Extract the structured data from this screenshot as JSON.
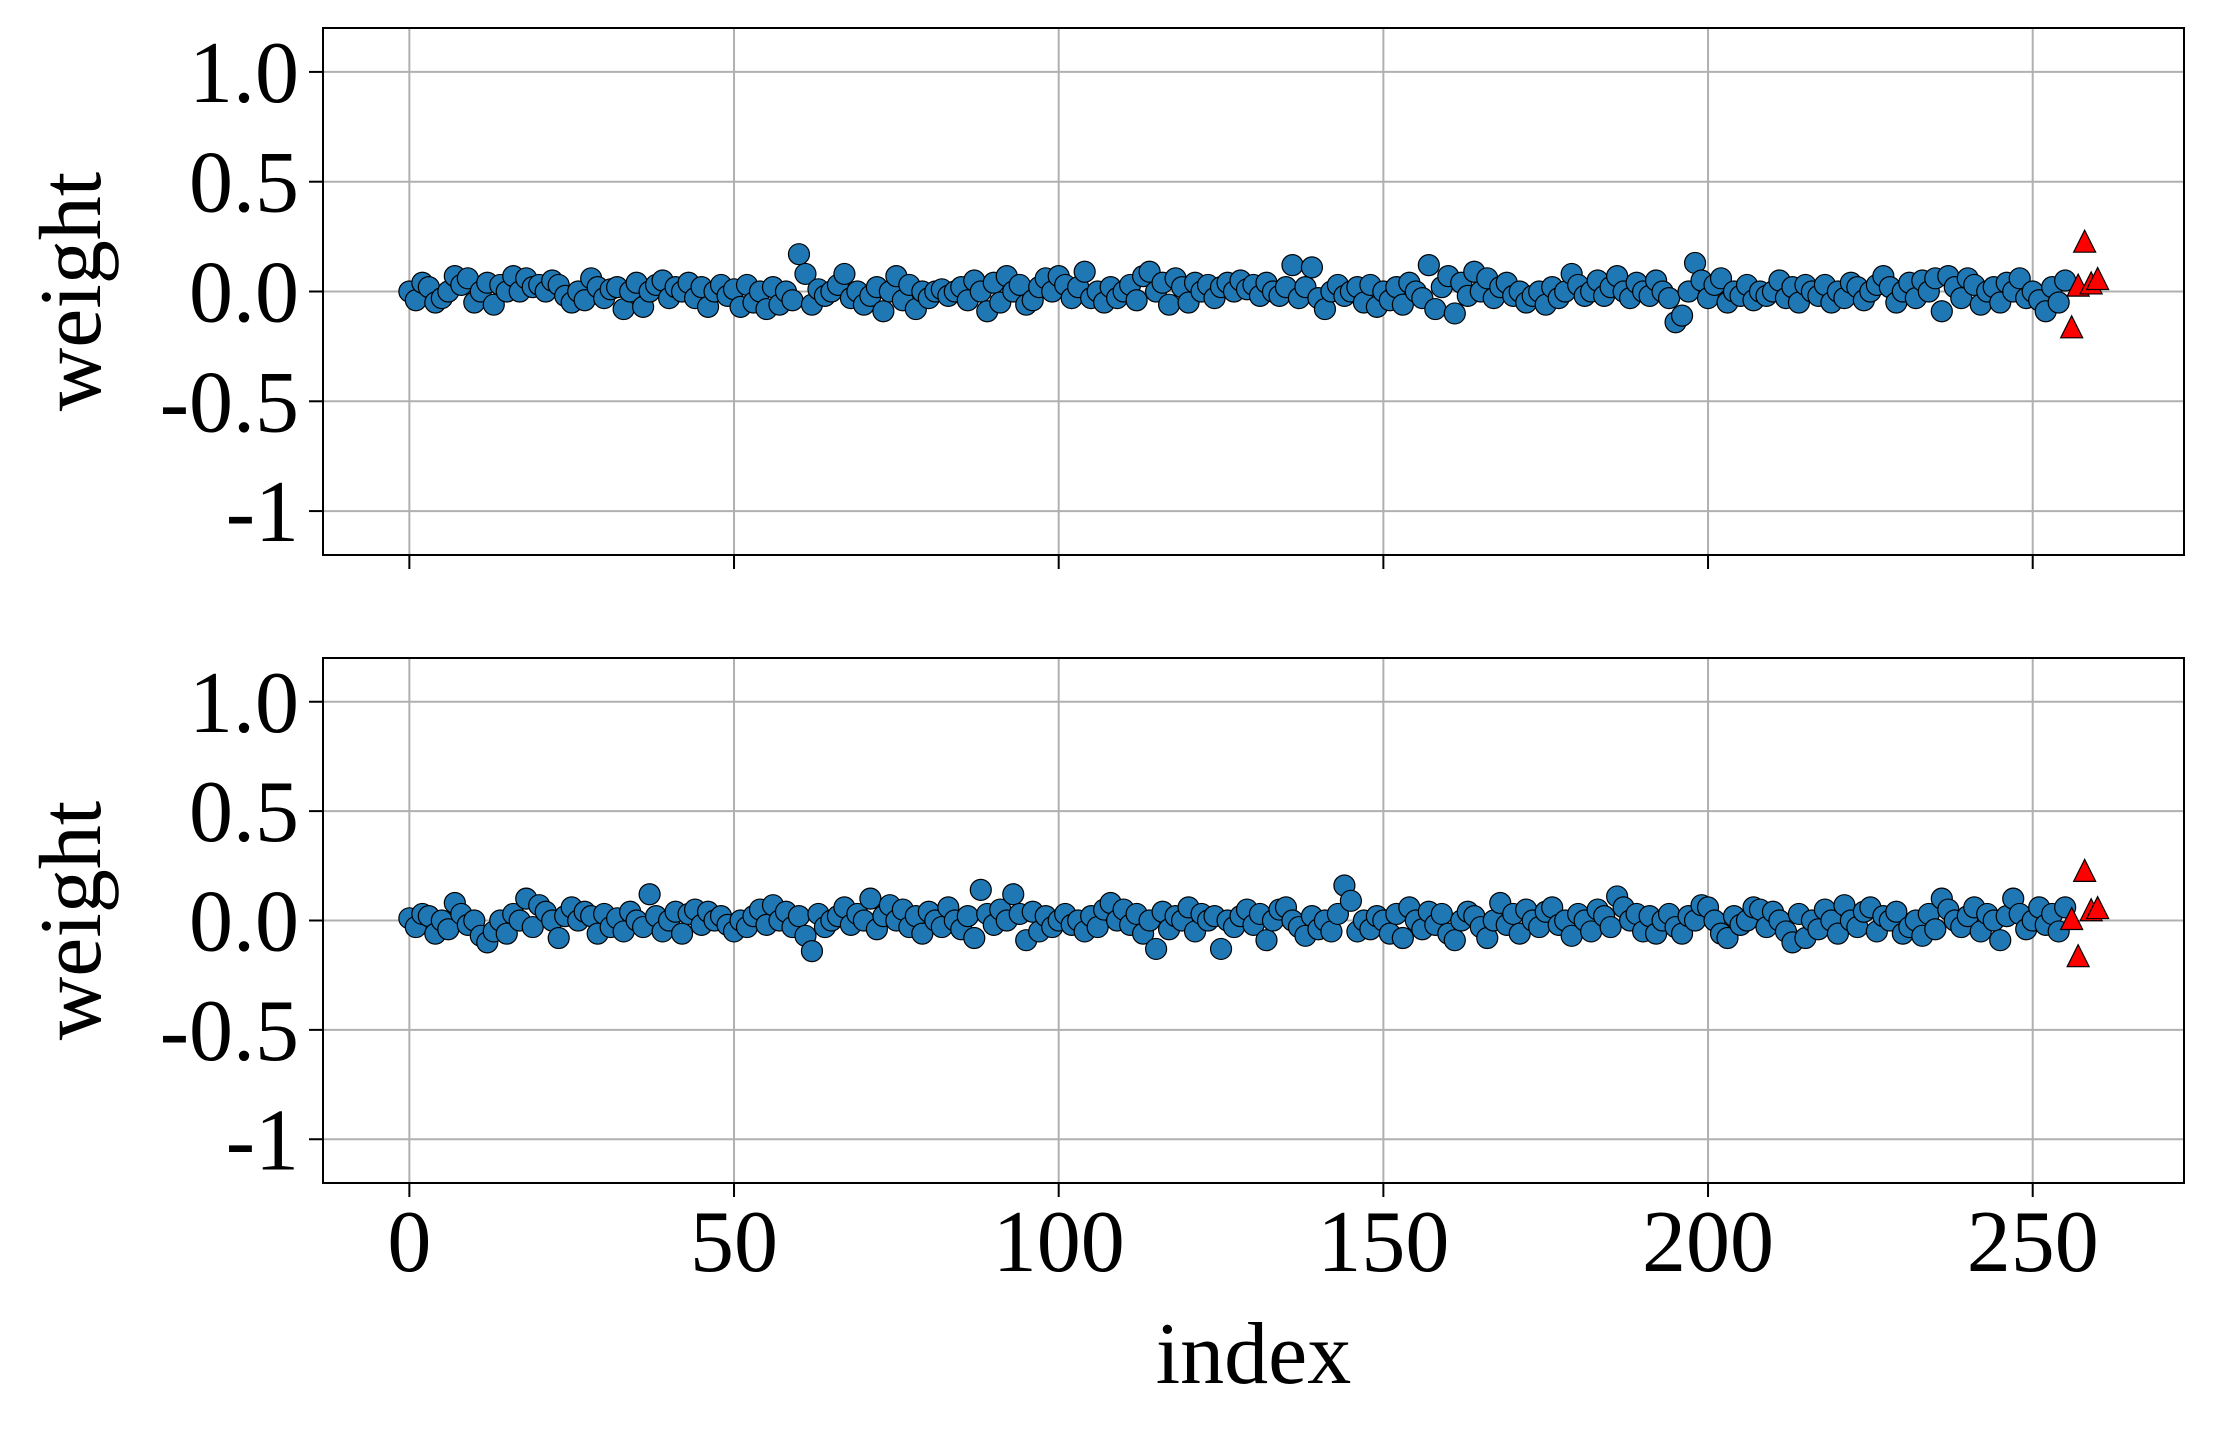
{
  "chart_data": [
    {
      "type": "scatter",
      "ylabel": "weight",
      "xlim": [
        -13.3,
        273.3
      ],
      "ylim": [
        -1.2,
        1.2
      ],
      "xticks": [
        0,
        50,
        100,
        150,
        200,
        250
      ],
      "xticklabels": false,
      "yticks": [
        {
          "value": 1,
          "label": "1.0"
        },
        0.5,
        {
          "value": 0,
          "label": "0.0"
        },
        -0.5,
        -1
      ],
      "grid": true,
      "x": [
        0,
        1,
        2,
        3,
        4,
        5,
        6,
        7,
        8,
        9,
        10,
        11,
        12,
        13,
        14,
        15,
        16,
        17,
        18,
        19,
        20,
        21,
        22,
        23,
        24,
        25,
        26,
        27,
        28,
        29,
        30,
        31,
        32,
        33,
        34,
        35,
        36,
        37,
        38,
        39,
        40,
        41,
        42,
        43,
        44,
        45,
        46,
        47,
        48,
        49,
        50,
        51,
        52,
        53,
        54,
        55,
        56,
        57,
        58,
        59,
        60,
        61,
        62,
        63,
        64,
        65,
        66,
        67,
        68,
        69,
        70,
        71,
        72,
        73,
        74,
        75,
        76,
        77,
        78,
        79,
        80,
        81,
        82,
        83,
        84,
        85,
        86,
        87,
        88,
        89,
        90,
        91,
        92,
        93,
        94,
        95,
        96,
        97,
        98,
        99,
        100,
        101,
        102,
        103,
        104,
        105,
        106,
        107,
        108,
        109,
        110,
        111,
        112,
        113,
        114,
        115,
        116,
        117,
        118,
        119,
        120,
        121,
        122,
        123,
        124,
        125,
        126,
        127,
        128,
        129,
        130,
        131,
        132,
        133,
        134,
        135,
        136,
        137,
        138,
        139,
        140,
        141,
        142,
        143,
        144,
        145,
        146,
        147,
        148,
        149,
        150,
        151,
        152,
        153,
        154,
        155,
        156,
        157,
        158,
        159,
        160,
        161,
        162,
        163,
        164,
        165,
        166,
        167,
        168,
        169,
        170,
        171,
        172,
        173,
        174,
        175,
        176,
        177,
        178,
        179,
        180,
        181,
        182,
        183,
        184,
        185,
        186,
        187,
        188,
        189,
        190,
        191,
        192,
        193,
        194,
        195,
        196,
        197,
        198,
        199,
        200,
        201,
        202,
        203,
        204,
        205,
        206,
        207,
        208,
        209,
        210,
        211,
        212,
        213,
        214,
        215,
        216,
        217,
        218,
        219,
        220,
        221,
        222,
        223,
        224,
        225,
        226,
        227,
        228,
        229,
        230,
        231,
        232,
        233,
        234,
        235,
        236,
        237,
        238,
        239,
        240,
        241,
        242,
        243,
        244,
        245,
        246,
        247,
        248,
        249,
        250,
        251,
        252,
        253,
        254,
        255
      ],
      "series": [
        {
          "color": "#1f77b4",
          "marker": "o",
          "values": [
            0.0,
            -0.04,
            0.04,
            0.02,
            -0.05,
            -0.03,
            0.0,
            0.07,
            0.03,
            0.06,
            -0.05,
            0.0,
            0.04,
            -0.06,
            0.03,
            0.0,
            0.07,
            0.0,
            0.06,
            0.02,
            0.03,
            0.0,
            0.05,
            0.03,
            -0.02,
            -0.05,
            0.0,
            -0.04,
            0.06,
            0.02,
            -0.03,
            0.01,
            0.02,
            -0.08,
            0.0,
            0.04,
            -0.07,
            0.0,
            0.03,
            0.05,
            -0.03,
            0.02,
            0.0,
            0.04,
            -0.03,
            0.02,
            -0.07,
            0.0,
            0.03,
            -0.02,
            0.01,
            -0.07,
            0.03,
            -0.05,
            0.0,
            -0.08,
            0.02,
            -0.06,
            0.0,
            -0.04,
            0.17,
            0.08,
            -0.06,
            0.01,
            -0.02,
            0.0,
            0.03,
            0.08,
            -0.03,
            0.0,
            -0.06,
            -0.02,
            0.02,
            -0.09,
            0.0,
            0.07,
            -0.04,
            0.03,
            -0.08,
            0.0,
            -0.03,
            0.0,
            0.01,
            -0.02,
            0.0,
            0.02,
            -0.04,
            0.05,
            0.0,
            -0.09,
            0.04,
            -0.05,
            0.07,
            0.0,
            0.03,
            -0.06,
            -0.04,
            0.02,
            0.06,
            0.0,
            0.07,
            0.03,
            -0.03,
            0.02,
            0.09,
            -0.03,
            0.0,
            -0.05,
            0.02,
            -0.03,
            0.0,
            0.03,
            -0.04,
            0.07,
            0.09,
            0.0,
            0.04,
            -0.06,
            0.06,
            0.02,
            -0.05,
            0.04,
            0.0,
            0.03,
            -0.03,
            0.02,
            0.04,
            0.0,
            0.05,
            0.01,
            0.03,
            -0.02,
            0.04,
            0.0,
            -0.02,
            0.02,
            0.12,
            -0.03,
            0.02,
            0.11,
            -0.03,
            -0.08,
            0.0,
            0.03,
            -0.02,
            0.0,
            0.02,
            -0.05,
            0.03,
            -0.07,
            0.0,
            -0.04,
            0.02,
            -0.06,
            0.04,
            0.0,
            -0.03,
            0.12,
            -0.08,
            0.02,
            0.07,
            -0.1,
            0.04,
            -0.02,
            0.09,
            0.0,
            0.06,
            -0.03,
            0.02,
            0.04,
            -0.02,
            0.0,
            -0.05,
            -0.02,
            0.0,
            -0.06,
            0.02,
            -0.03,
            0.0,
            0.08,
            0.03,
            -0.02,
            0.0,
            0.05,
            -0.02,
            0.02,
            0.07,
            0.0,
            -0.03,
            0.04,
            0.0,
            -0.02,
            0.05,
            0.0,
            -0.03,
            -0.14,
            -0.11,
            0.0,
            0.13,
            0.05,
            -0.03,
            0.03,
            0.06,
            -0.05,
            0.0,
            -0.02,
            0.03,
            -0.04,
            0.0,
            -0.02,
            0.0,
            0.05,
            -0.03,
            0.02,
            -0.05,
            0.03,
            0.0,
            -0.02,
            0.03,
            -0.05,
            0.0,
            -0.03,
            0.04,
            0.02,
            -0.04,
            0.0,
            0.03,
            0.07,
            0.02,
            -0.05,
            0.0,
            0.04,
            -0.03,
            0.05,
            0.0,
            0.06,
            -0.09,
            0.07,
            0.02,
            -0.03,
            0.06,
            0.03,
            -0.06,
            0.0,
            0.02,
            -0.05,
            0.04,
            0.0,
            0.06,
            -0.03,
            0.0,
            -0.04,
            -0.09,
            0.02,
            -0.05,
            0.05
          ]
        },
        {
          "color": "#ff0000",
          "marker": "^",
          "x": [
            256,
            257,
            258,
            259,
            260
          ],
          "values": [
            -0.17,
            0.02,
            0.22,
            0.03,
            0.05
          ]
        }
      ]
    },
    {
      "type": "scatter",
      "ylabel": "weight",
      "xlabel": "index",
      "xlim": [
        -13.3,
        273.3
      ],
      "ylim": [
        -1.2,
        1.2
      ],
      "xticks": [
        0,
        50,
        100,
        150,
        200,
        250
      ],
      "xticklabels": true,
      "yticks": [
        {
          "value": 1,
          "label": "1.0"
        },
        0.5,
        {
          "value": 0,
          "label": "0.0"
        },
        -0.5,
        -1
      ],
      "grid": true,
      "x": [
        0,
        1,
        2,
        3,
        4,
        5,
        6,
        7,
        8,
        9,
        10,
        11,
        12,
        13,
        14,
        15,
        16,
        17,
        18,
        19,
        20,
        21,
        22,
        23,
        24,
        25,
        26,
        27,
        28,
        29,
        30,
        31,
        32,
        33,
        34,
        35,
        36,
        37,
        38,
        39,
        40,
        41,
        42,
        43,
        44,
        45,
        46,
        47,
        48,
        49,
        50,
        51,
        52,
        53,
        54,
        55,
        56,
        57,
        58,
        59,
        60,
        61,
        62,
        63,
        64,
        65,
        66,
        67,
        68,
        69,
        70,
        71,
        72,
        73,
        74,
        75,
        76,
        77,
        78,
        79,
        80,
        81,
        82,
        83,
        84,
        85,
        86,
        87,
        88,
        89,
        90,
        91,
        92,
        93,
        94,
        95,
        96,
        97,
        98,
        99,
        100,
        101,
        102,
        103,
        104,
        105,
        106,
        107,
        108,
        109,
        110,
        111,
        112,
        113,
        114,
        115,
        116,
        117,
        118,
        119,
        120,
        121,
        122,
        123,
        124,
        125,
        126,
        127,
        128,
        129,
        130,
        131,
        132,
        133,
        134,
        135,
        136,
        137,
        138,
        139,
        140,
        141,
        142,
        143,
        144,
        145,
        146,
        147,
        148,
        149,
        150,
        151,
        152,
        153,
        154,
        155,
        156,
        157,
        158,
        159,
        160,
        161,
        162,
        163,
        164,
        165,
        166,
        167,
        168,
        169,
        170,
        171,
        172,
        173,
        174,
        175,
        176,
        177,
        178,
        179,
        180,
        181,
        182,
        183,
        184,
        185,
        186,
        187,
        188,
        189,
        190,
        191,
        192,
        193,
        194,
        195,
        196,
        197,
        198,
        199,
        200,
        201,
        202,
        203,
        204,
        205,
        206,
        207,
        208,
        209,
        210,
        211,
        212,
        213,
        214,
        215,
        216,
        217,
        218,
        219,
        220,
        221,
        222,
        223,
        224,
        225,
        226,
        227,
        228,
        229,
        230,
        231,
        232,
        233,
        234,
        235,
        236,
        237,
        238,
        239,
        240,
        241,
        242,
        243,
        244,
        245,
        246,
        247,
        248,
        249,
        250,
        251,
        252,
        253,
        254,
        255
      ],
      "series": [
        {
          "color": "#1f77b4",
          "marker": "o",
          "values": [
            0.01,
            -0.03,
            0.03,
            0.02,
            -0.06,
            0.0,
            -0.04,
            0.08,
            0.03,
            -0.02,
            0.0,
            -0.07,
            -0.1,
            -0.05,
            0.0,
            -0.06,
            0.03,
            0.0,
            0.1,
            -0.03,
            0.07,
            0.04,
            0.0,
            -0.08,
            0.02,
            0.06,
            0.0,
            0.04,
            0.02,
            -0.06,
            0.03,
            -0.03,
            0.01,
            -0.05,
            0.04,
            0.0,
            -0.03,
            0.12,
            0.02,
            -0.05,
            0.0,
            0.04,
            -0.06,
            0.03,
            0.05,
            -0.02,
            0.04,
            0.0,
            0.02,
            -0.02,
            -0.05,
            0.0,
            -0.03,
            0.02,
            0.05,
            -0.02,
            0.07,
            0.0,
            0.04,
            -0.03,
            0.02,
            -0.07,
            -0.14,
            0.03,
            -0.03,
            0.0,
            0.02,
            0.06,
            -0.02,
            0.03,
            0.0,
            0.1,
            -0.04,
            0.02,
            0.07,
            0.0,
            0.05,
            -0.03,
            0.02,
            -0.06,
            0.04,
            0.0,
            -0.03,
            0.06,
            0.0,
            -0.04,
            0.02,
            -0.08,
            0.14,
            0.03,
            -0.02,
            0.05,
            0.0,
            0.12,
            0.03,
            -0.09,
            0.04,
            -0.05,
            0.02,
            -0.03,
            0.0,
            0.03,
            -0.02,
            0.0,
            -0.05,
            0.02,
            -0.03,
            0.05,
            0.08,
            0.0,
            0.05,
            -0.02,
            0.03,
            -0.06,
            0.0,
            -0.13,
            0.04,
            -0.04,
            0.02,
            0.0,
            0.06,
            -0.05,
            0.03,
            0.0,
            0.02,
            -0.13,
            0.0,
            -0.03,
            0.02,
            0.05,
            -0.02,
            0.03,
            -0.09,
            0.0,
            0.05,
            0.06,
            0.0,
            -0.03,
            -0.07,
            0.02,
            -0.04,
            0.0,
            -0.05,
            0.03,
            0.16,
            0.09,
            -0.05,
            0.0,
            -0.04,
            0.02,
            0.0,
            -0.06,
            0.03,
            -0.08,
            0.06,
            0.0,
            -0.04,
            0.04,
            -0.02,
            0.03,
            -0.06,
            -0.09,
            0.0,
            0.04,
            0.02,
            -0.03,
            -0.08,
            0.0,
            0.08,
            -0.02,
            0.03,
            -0.06,
            0.05,
            0.0,
            -0.03,
            0.04,
            0.06,
            -0.02,
            0.0,
            -0.07,
            0.03,
            0.0,
            -0.05,
            0.05,
            0.02,
            -0.03,
            0.11,
            0.06,
            0.0,
            0.03,
            -0.05,
            0.02,
            -0.06,
            0.0,
            0.03,
            -0.03,
            -0.06,
            0.02,
            0.0,
            0.07,
            0.06,
            0.0,
            -0.06,
            -0.08,
            0.02,
            -0.02,
            0.0,
            0.06,
            0.05,
            -0.03,
            0.04,
            0.0,
            -0.05,
            -0.1,
            0.03,
            -0.08,
            0.0,
            -0.04,
            0.05,
            0.0,
            -0.06,
            0.07,
            0.0,
            -0.03,
            0.04,
            0.06,
            -0.05,
            0.02,
            0.0,
            0.04,
            -0.06,
            -0.03,
            0.0,
            -0.07,
            0.03,
            -0.04,
            0.1,
            0.05,
            0.0,
            -0.03,
            0.02,
            0.06,
            -0.05,
            0.03,
            0.0,
            -0.09,
            0.02,
            0.1,
            0.03,
            -0.04,
            0.0,
            0.06,
            -0.02,
            0.03,
            -0.05,
            0.06
          ]
        },
        {
          "color": "#ff0000",
          "marker": "^",
          "x": [
            256,
            257,
            258,
            259,
            260
          ],
          "values": [
            0.0,
            -0.17,
            0.22,
            0.04,
            0.05
          ]
        }
      ]
    }
  ]
}
